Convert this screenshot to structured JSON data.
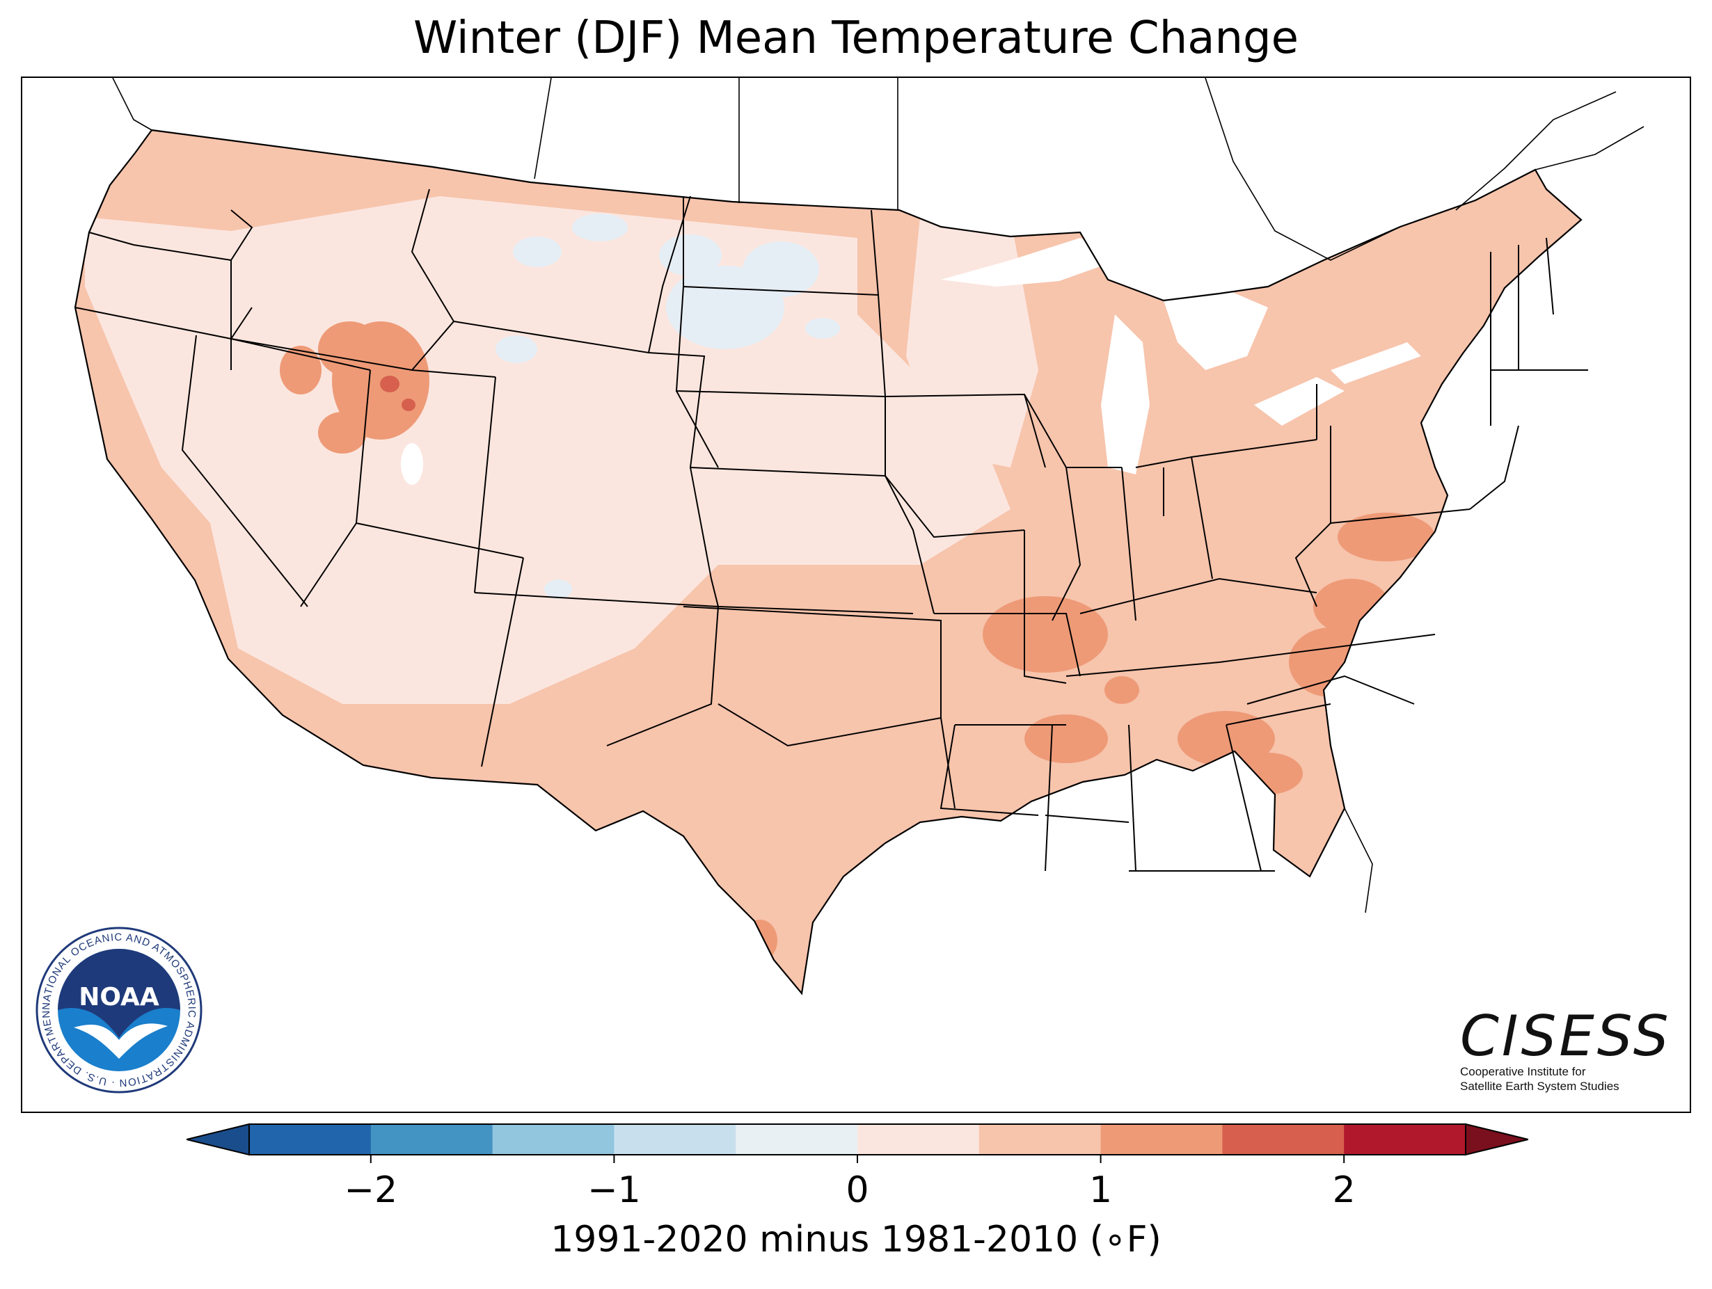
{
  "title": "Winter (DJF) Mean Temperature Change",
  "colorbar": {
    "label": "1991-2020 minus 1981-2010 (∘F)",
    "ticks": [
      "−2",
      "−1",
      "0",
      "1",
      "2"
    ],
    "tick_values": [
      -2,
      -1,
      0,
      1,
      2
    ],
    "range": [
      -2.5,
      2.5
    ],
    "bin_edges": [
      -2.5,
      -2,
      -1.5,
      -1,
      -0.5,
      0,
      0.5,
      1,
      1.5,
      2,
      2.5
    ],
    "colors": [
      "#2166ac",
      "#4393c3",
      "#92c5de",
      "#c8e0ee",
      "#e8f0f4",
      "#fbe6df",
      "#f7c4ac",
      "#ee9a77",
      "#d6604d",
      "#b2182b"
    ],
    "under_color": "#1a4d8c",
    "over_color": "#7a0f1e"
  },
  "map": {
    "region": "Contiguous United States",
    "background_color": "#f7c4ac",
    "cool_patch_color": "#e6eef5",
    "light_region_color": "#fbe6df",
    "warm_patch_color": "#ee9a77",
    "hot_spot_color": "#d6604d",
    "border_color": "#000000"
  },
  "logos": {
    "noaa": {
      "center_text": "NOAA",
      "ring_text": "NATIONAL OCEANIC AND ATMOSPHERIC ADMINISTRATION · U.S. DEPARTMENT OF COMMERCE ·",
      "ring_color": "#1f3a7a"
    },
    "cisess": {
      "name": "CISESS",
      "subtitle_line1": "Cooperative Institute for",
      "subtitle_line2": "Satellite Earth System Studies"
    }
  }
}
